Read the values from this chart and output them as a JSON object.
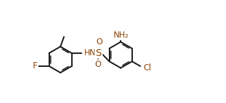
{
  "background": "#ffffff",
  "bond_color": "#1c1c1c",
  "hetero_color": "#8B4000",
  "lw": 1.5,
  "fs": 8.5,
  "fig_w": 3.3,
  "fig_h": 1.51,
  "dpi": 100,
  "xlim": [
    -0.3,
    9.8
  ],
  "ylim": [
    -1.5,
    4.2
  ]
}
